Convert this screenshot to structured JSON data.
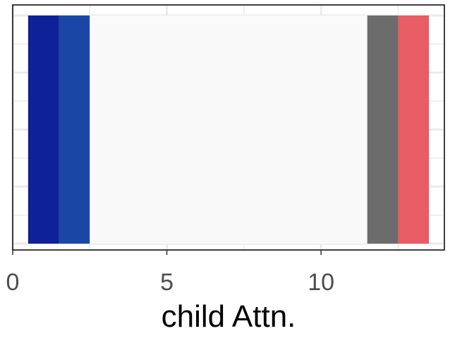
{
  "chart_data": {
    "type": "bar",
    "title": "",
    "xlabel": "child Attn.",
    "ylabel": "",
    "xlim": [
      0,
      14
    ],
    "x_ticks": [
      0,
      5,
      10
    ],
    "x_tick_labels": [
      "0",
      "5",
      "10"
    ],
    "x_minor_ticks": [
      2.5,
      7.5,
      12.5
    ],
    "grid": true,
    "legend": "none",
    "colors": {
      "grid": "#ebebeb",
      "panel_border": "#000000",
      "tick_label": "#4d4d4d"
    },
    "bars": [
      {
        "xmin": 0.5,
        "xmax": 1.5,
        "color": "#0f2196"
      },
      {
        "xmin": 1.5,
        "xmax": 2.5,
        "color": "#1a47a6"
      },
      {
        "xmin": 2.5,
        "xmax": 11.5,
        "color": "#f9f9f9"
      },
      {
        "xmin": 11.5,
        "xmax": 12.5,
        "color": "#6c6c6c"
      },
      {
        "xmin": 12.5,
        "xmax": 13.5,
        "color": "#e85c66"
      }
    ]
  }
}
